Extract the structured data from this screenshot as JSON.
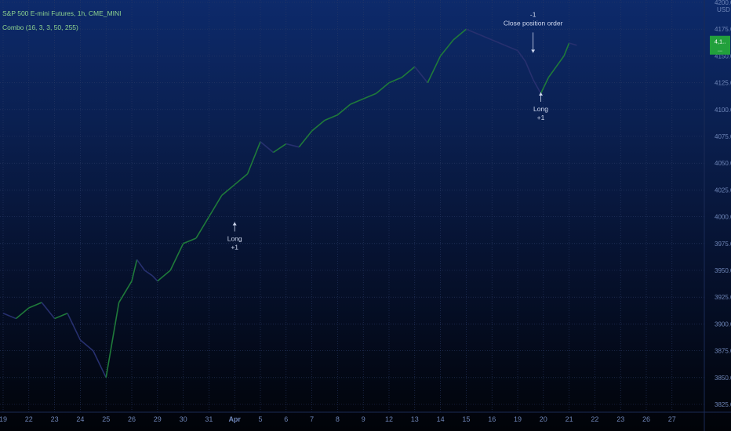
{
  "header": {
    "symbol": "S&P 500 E-mini Futures, 1h, CME_MINI",
    "indicator": "Combo (16, 3, 3, 50, 255)"
  },
  "colors": {
    "up": "#1f7a3a",
    "down": "#27306f",
    "grid": "#2a3a66",
    "axis_text": "#6f86b8",
    "annotation": "#cfd8ee",
    "price_tag": "#22a03c"
  },
  "axis": {
    "y_unit": "USD",
    "y_ticks": [
      "4200.00",
      "4175.00",
      "4150.00",
      "4125.00",
      "4100.00",
      "4075.00",
      "4050.00",
      "4025.00",
      "4000.00",
      "3975.00",
      "3950.00",
      "3925.00",
      "3900.00",
      "3875.00",
      "3850.00",
      "3825.00"
    ],
    "x_ticks": [
      "19",
      "22",
      "23",
      "24",
      "25",
      "26",
      "29",
      "30",
      "31",
      "Apr",
      "5",
      "6",
      "7",
      "8",
      "9",
      "12",
      "13",
      "14",
      "15",
      "16",
      "19",
      "20",
      "21",
      "22",
      "23",
      "26",
      "27"
    ]
  },
  "price_tag": {
    "line1": "4,1..",
    "line2": "..."
  },
  "chart_data": {
    "type": "line",
    "title": "S&P 500 E-mini Futures, 1h, CME_MINI",
    "ylabel": "USD",
    "ylim": [
      3825,
      4200
    ],
    "categories": [
      "19",
      "22",
      "23",
      "24",
      "25",
      "26",
      "29",
      "30",
      "31",
      "Apr",
      "5",
      "6",
      "7",
      "8",
      "9",
      "12",
      "13",
      "14",
      "15",
      "16",
      "19",
      "20",
      "21",
      "22",
      "23",
      "26",
      "27"
    ],
    "series": [
      {
        "x": [
          0.0,
          0.5,
          1.0,
          1.5,
          2.0,
          2.5,
          3.0,
          3.5,
          4.0,
          4.5,
          5.0,
          5.2,
          5.5,
          5.8,
          6.0,
          6.5,
          7.0,
          7.5,
          8.0,
          8.5,
          9.0,
          9.5,
          10.0,
          10.5,
          11.0,
          11.5,
          12.0,
          12.5,
          13.0,
          13.5,
          14.0,
          14.5,
          15.0,
          15.5,
          16.0,
          16.5,
          17.0,
          17.5,
          18.0,
          18.5,
          19.0,
          19.5,
          20.0,
          20.3,
          20.6,
          20.9,
          21.2,
          21.5,
          21.8,
          22.0,
          22.3
        ],
        "values": [
          3910,
          3905,
          3915,
          3920,
          3905,
          3910,
          3885,
          3875,
          3850,
          3920,
          3940,
          3960,
          3950,
          3945,
          3940,
          3950,
          3975,
          3980,
          4000,
          4020,
          4030,
          4040,
          4070,
          4060,
          4068,
          4065,
          4080,
          4090,
          4095,
          4105,
          4110,
          4115,
          4125,
          4130,
          4140,
          4125,
          4150,
          4165,
          4175,
          4170,
          4165,
          4160,
          4155,
          4145,
          4128,
          4115,
          4130,
          4140,
          4150,
          4162,
          4160
        ]
      }
    ],
    "annotations": [
      {
        "x": 9.0,
        "y": 3995,
        "text_lines": [
          "Long",
          "+1"
        ]
      },
      {
        "x": 20.9,
        "y": 4116,
        "text_lines": [
          "Long",
          "+1"
        ]
      },
      {
        "x": 20.6,
        "y": 4150,
        "text_lines": [
          "-1",
          "Close position order"
        ]
      }
    ]
  }
}
